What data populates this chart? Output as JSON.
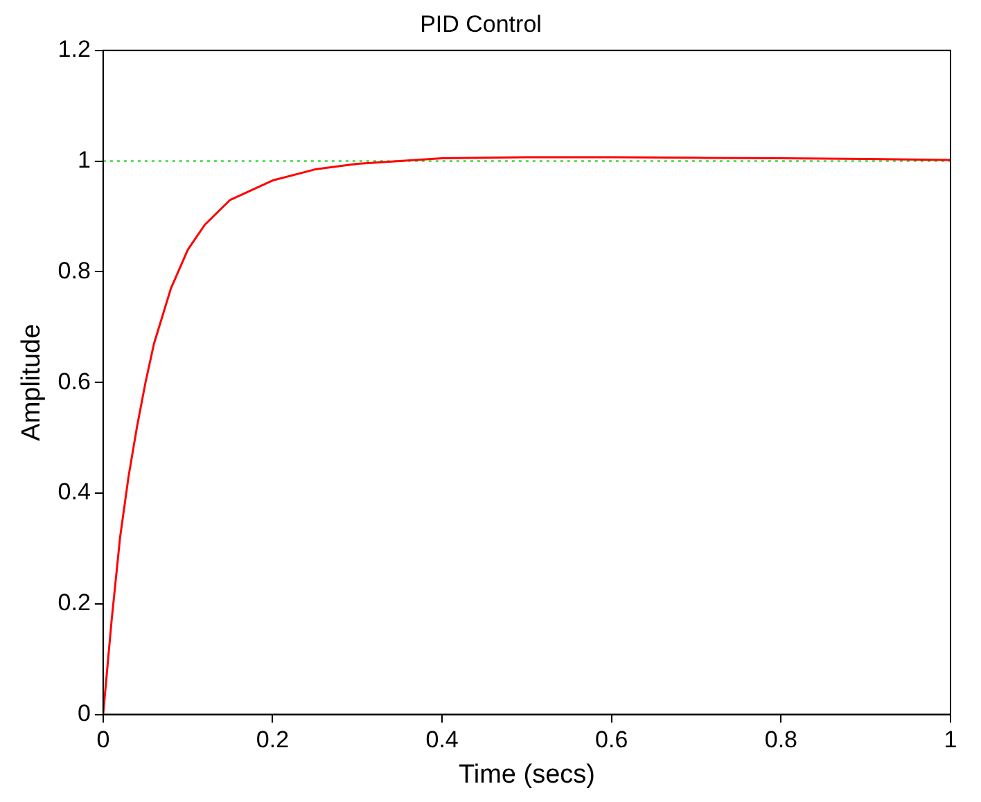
{
  "chart_data": {
    "type": "line",
    "title": "PID Control",
    "xlabel": "Time (secs)",
    "ylabel": "Amplitude",
    "x": [
      0,
      0.01,
      0.02,
      0.03,
      0.04,
      0.05,
      0.06,
      0.08,
      0.1,
      0.12,
      0.15,
      0.2,
      0.25,
      0.3,
      0.35,
      0.4,
      0.5,
      0.6,
      0.7,
      0.8,
      0.9,
      1.0
    ],
    "series": [
      {
        "color": "#ff0000",
        "values": [
          0,
          0.17,
          0.32,
          0.43,
          0.52,
          0.6,
          0.67,
          0.77,
          0.84,
          0.885,
          0.93,
          0.965,
          0.985,
          0.995,
          1.0,
          1.005,
          1.007,
          1.007,
          1.006,
          1.005,
          1.004,
          1.002
        ]
      }
    ],
    "xlim": [
      0,
      1
    ],
    "xticks": [
      0,
      0.2,
      0.4,
      0.6,
      0.8,
      1
    ],
    "ylim": [
      0,
      1.2
    ],
    "yticks": [
      0,
      0.2,
      0.4,
      0.6,
      0.8,
      1,
      1.2
    ],
    "ref_lines": [
      {
        "axis": "y",
        "value": 1,
        "color": "#00cc00",
        "line_style": "dotted"
      }
    ],
    "grid": false,
    "legend": false,
    "marker": "none",
    "line_style": "solid"
  }
}
